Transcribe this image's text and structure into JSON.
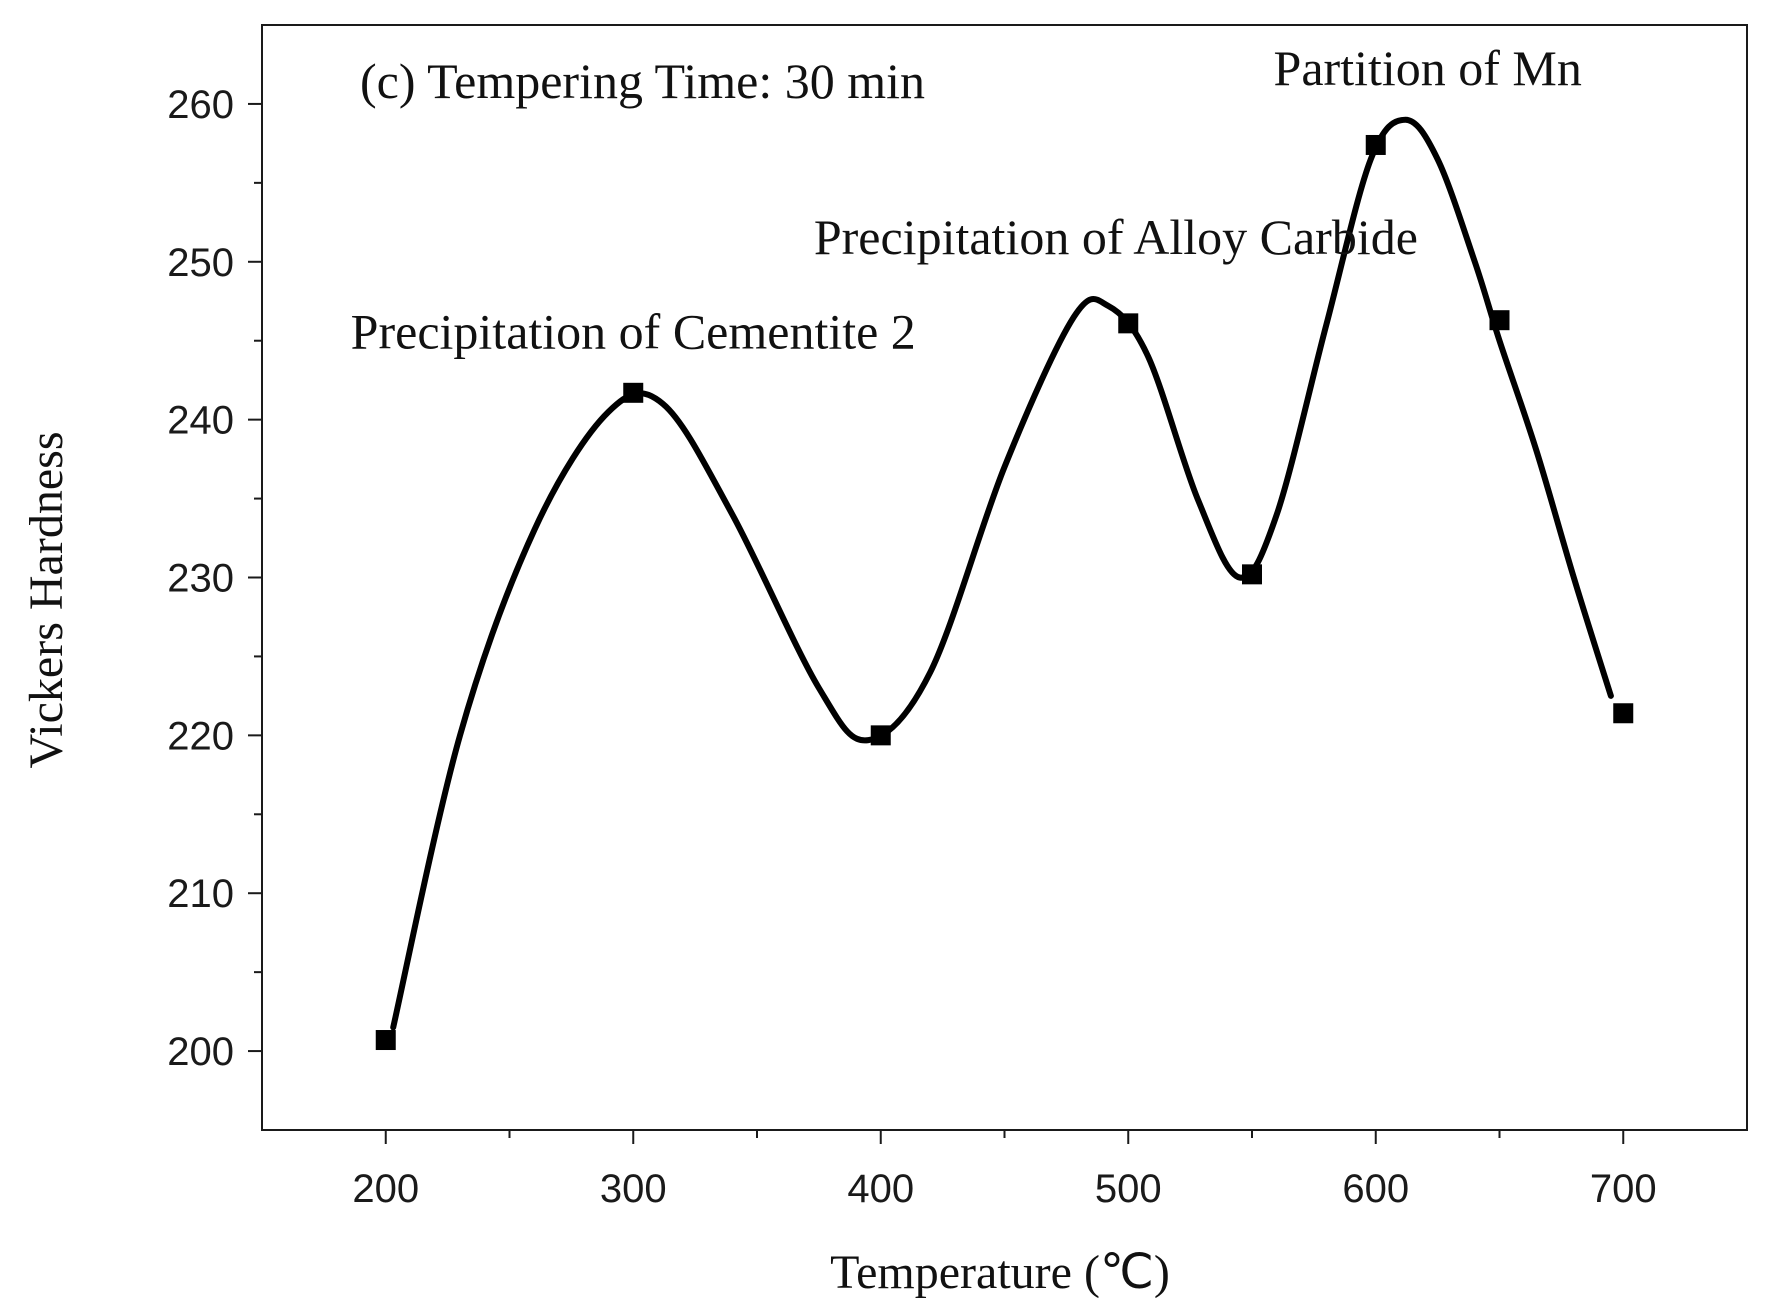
{
  "chart_data": {
    "type": "scatter",
    "title": "(c) Tempering Time: 30 min",
    "xlabel": "Temperature (℃)",
    "ylabel": "Vickers Hardness",
    "xlim": [
      150,
      750
    ],
    "ylim": [
      195,
      265
    ],
    "x_ticks": [
      200,
      300,
      400,
      500,
      600,
      700
    ],
    "y_ticks": [
      200,
      210,
      220,
      230,
      240,
      250,
      260
    ],
    "grid": false,
    "series": [
      {
        "name": "Vickers Hardness",
        "marker": "square",
        "color": "#000000",
        "x": [
          200,
          300,
          400,
          500,
          550,
          600,
          650,
          700
        ],
        "y": [
          200.7,
          241.7,
          220.0,
          246.1,
          230.2,
          257.4,
          246.3,
          221.4
        ],
        "curve": {
          "style": "smooth",
          "x": [
            203,
            230,
            260,
            290,
            312,
            340,
            375,
            395,
            420,
            450,
            478,
            492,
            508,
            528,
            545,
            560,
            580,
            598,
            612,
            625,
            640,
            650,
            665,
            680,
            695
          ],
          "y": [
            201.5,
            220,
            233,
            240.5,
            241,
            234,
            223,
            219.7,
            224,
            237,
            246.5,
            247.2,
            244,
            235,
            230,
            234,
            246,
            256.5,
            259,
            256.5,
            250,
            245,
            238,
            230,
            222.5
          ]
        }
      }
    ],
    "annotations": [
      {
        "text": "Precipitation of Cementite 2",
        "x": 300,
        "y": 244.5
      },
      {
        "text": "Precipitation of Alloy Carbide",
        "x": 495,
        "y": 250.5
      },
      {
        "text": "Partition of Mn",
        "x": 621,
        "y": 261.2
      }
    ]
  }
}
